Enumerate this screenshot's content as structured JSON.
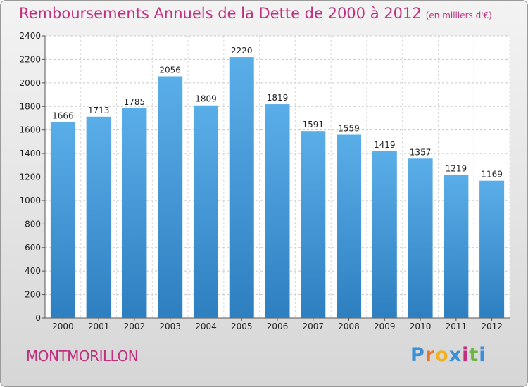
{
  "chart_data": {
    "type": "bar",
    "title": "Remboursements Annuels de la Dette de 2000 à 2012",
    "unit_label": "(en milliers d'€)",
    "categories": [
      "2000",
      "2001",
      "2002",
      "2003",
      "2004",
      "2005",
      "2006",
      "2007",
      "2008",
      "2009",
      "2010",
      "2011",
      "2012"
    ],
    "values": [
      1666,
      1713,
      1785,
      2056,
      1809,
      2220,
      1819,
      1591,
      1559,
      1419,
      1357,
      1219,
      1169
    ],
    "ylim": [
      0,
      2400
    ],
    "yticks": [
      0,
      200,
      400,
      600,
      800,
      1000,
      1200,
      1400,
      1600,
      1800,
      2000,
      2200,
      2400
    ],
    "grid": true,
    "bar_color_top": "#5aaee8",
    "bar_color_bottom": "#2e7fc0"
  },
  "commune": "MONTMORILLON",
  "logo": {
    "letters": [
      "P",
      "r",
      "o",
      "x",
      "i",
      "t",
      "i"
    ],
    "colors": [
      "#3b8fd6",
      "#e8762d",
      "#f2b21f",
      "#3b8fd6",
      "#c0307e",
      "#6cb33f",
      "#3b8fd6"
    ]
  },
  "colors": {
    "accent": "#c0307e"
  }
}
